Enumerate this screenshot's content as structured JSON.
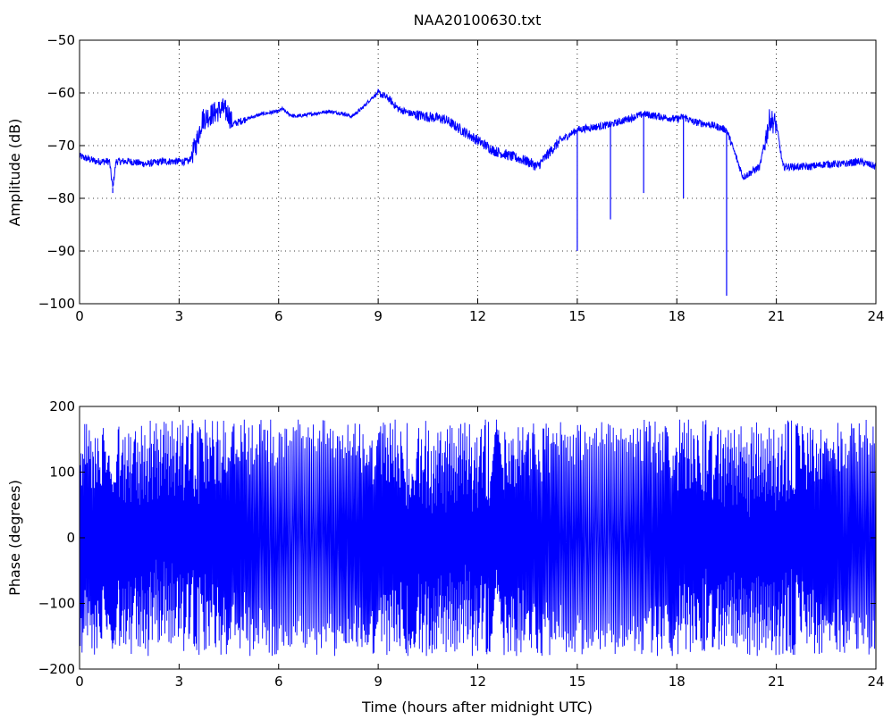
{
  "title": "NAA20100630.txt",
  "chart_data": [
    {
      "type": "line",
      "title": "NAA20100630.txt",
      "xlabel": "",
      "ylabel": "Amplitude (dB)",
      "xlim": [
        0,
        24
      ],
      "ylim": [
        -100,
        -50
      ],
      "xticks": [
        0,
        3,
        6,
        9,
        12,
        15,
        18,
        21,
        24
      ],
      "yticks": [
        -50,
        -60,
        -70,
        -80,
        -90,
        -100
      ],
      "grid": true,
      "line_color": "#0000ff",
      "series": [
        {
          "x": [
            0,
            0.5,
            0.9,
            1.0,
            1.1,
            1.5,
            2.0,
            2.5,
            3.0,
            3.3,
            3.5,
            3.7,
            4.0,
            4.3,
            4.5,
            4.6,
            5.0,
            5.5,
            6.0,
            6.1,
            6.3,
            6.5,
            7.0,
            7.5,
            8.0,
            8.2,
            8.5,
            8.8,
            9.0,
            9.3,
            9.6,
            10.0,
            10.5,
            11.0,
            11.5,
            12.0,
            12.5,
            13.0,
            13.5,
            13.8,
            14.2,
            14.5,
            15.0,
            15.5,
            16.0,
            16.5,
            17.0,
            17.5,
            18.0,
            18.2,
            18.5,
            19.0,
            19.5,
            20.0,
            20.5,
            20.8,
            21.0,
            21.2,
            21.5,
            22.0,
            22.5,
            23.0,
            23.5,
            24.0
          ],
          "y": [
            -72,
            -73,
            -73,
            -78,
            -73,
            -73,
            -73.5,
            -73,
            -73,
            -73,
            -70,
            -65,
            -64,
            -63,
            -64,
            -66,
            -65,
            -64,
            -63.5,
            -63,
            -64,
            -64.5,
            -64,
            -63.5,
            -64,
            -64.5,
            -63,
            -61,
            -60,
            -61,
            -63,
            -64,
            -64.5,
            -65,
            -67,
            -69,
            -71,
            -72,
            -73,
            -74,
            -71,
            -69,
            -67,
            -66.5,
            -66,
            -65,
            -64,
            -64.5,
            -65,
            -64.5,
            -65.5,
            -66,
            -67,
            -76,
            -74,
            -65,
            -66,
            -74,
            -74,
            -74,
            -73.5,
            -73.5,
            -73,
            -74
          ]
        }
      ],
      "spikes": [
        {
          "x": 1.0,
          "y": -79
        },
        {
          "x": 15.0,
          "y": -90
        },
        {
          "x": 16.0,
          "y": -84
        },
        {
          "x": 17.0,
          "y": -79
        },
        {
          "x": 18.2,
          "y": -80
        },
        {
          "x": 19.5,
          "y": -98.5
        }
      ]
    },
    {
      "type": "line",
      "title": "",
      "xlabel": "Time (hours after midnight UTC)",
      "ylabel": "Phase (degrees)",
      "xlim": [
        0,
        24
      ],
      "ylim": [
        -200,
        200
      ],
      "xticks": [
        0,
        3,
        6,
        9,
        12,
        15,
        18,
        21,
        24
      ],
      "yticks": [
        200,
        100,
        0,
        -100,
        -200
      ],
      "grid": false,
      "line_color": "#0000ff",
      "description_range": [
        -180,
        180
      ],
      "series": [
        {
          "pattern": "phase wraps between -180 and 180 degrees throughout the day",
          "wrap_low": -180,
          "wrap_high": 180
        }
      ]
    }
  ]
}
